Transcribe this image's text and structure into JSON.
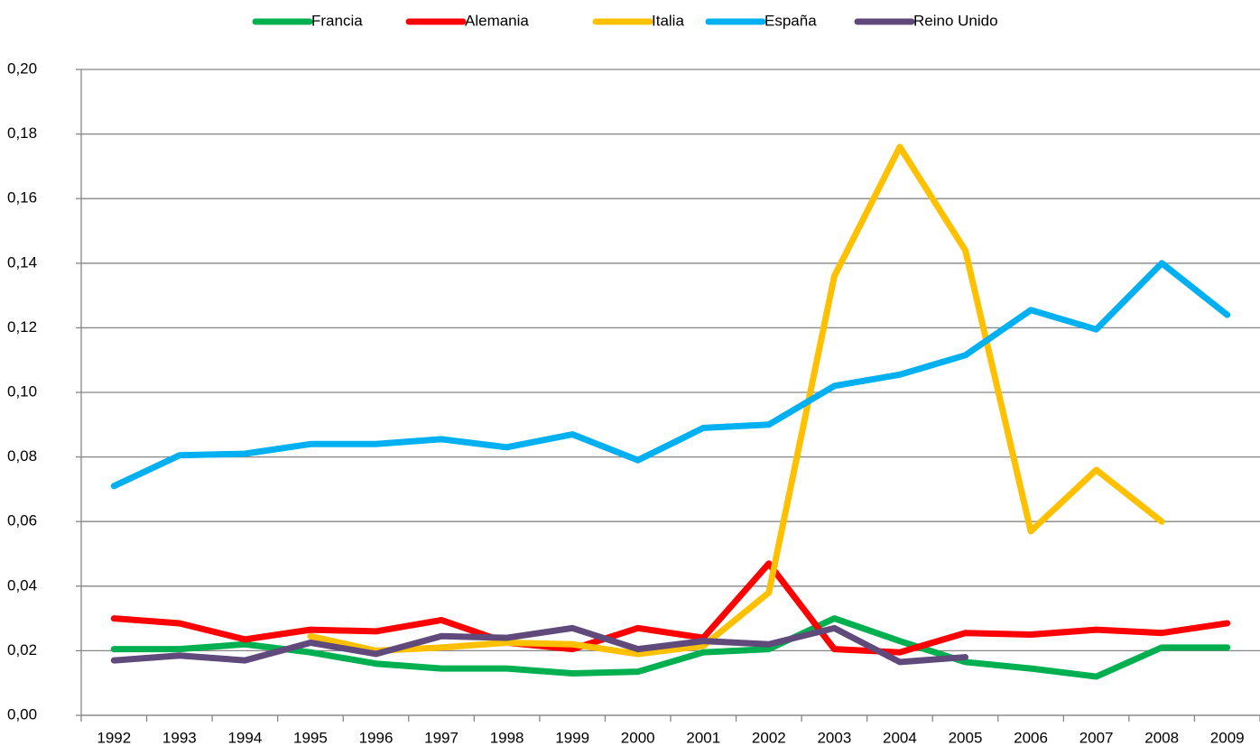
{
  "chart_data": {
    "type": "line",
    "categories": [
      "1992",
      "1993",
      "1994",
      "1995",
      "1996",
      "1997",
      "1998",
      "1999",
      "2000",
      "2001",
      "2002",
      "2003",
      "2004",
      "2005",
      "2006",
      "2007",
      "2008",
      "2009"
    ],
    "series": [
      {
        "name": "Francia",
        "color": "#00b050",
        "values": [
          0.0205,
          0.0205,
          0.022,
          0.0195,
          0.016,
          0.0145,
          0.0145,
          0.013,
          0.0135,
          0.0195,
          0.0205,
          0.03,
          0.023,
          0.0165,
          0.0145,
          0.012,
          0.021,
          0.021
        ]
      },
      {
        "name": "Alemania",
        "color": "#ff0000",
        "values": [
          0.03,
          0.0285,
          0.0235,
          0.0265,
          0.026,
          0.0295,
          0.0225,
          0.0205,
          0.027,
          0.024,
          0.047,
          0.0205,
          0.0195,
          0.0255,
          0.025,
          0.0265,
          0.0255,
          0.0285
        ]
      },
      {
        "name": "Italia",
        "color": "#ffc000",
        "values": [
          null,
          null,
          null,
          0.0245,
          0.02,
          0.021,
          0.0225,
          0.022,
          0.019,
          0.0215,
          0.038,
          0.136,
          0.176,
          0.144,
          0.057,
          0.076,
          0.06,
          null
        ]
      },
      {
        "name": "España",
        "color": "#00b0f0",
        "values": [
          0.071,
          0.0805,
          0.081,
          0.084,
          0.084,
          0.0855,
          0.083,
          0.087,
          0.079,
          0.089,
          0.09,
          0.102,
          0.1055,
          0.1115,
          0.1255,
          0.1195,
          0.14,
          0.124
        ]
      },
      {
        "name": "Reino Unido",
        "color": "#604a7b",
        "values": [
          0.017,
          0.0185,
          0.017,
          0.0225,
          0.019,
          0.0245,
          0.024,
          0.027,
          0.0205,
          0.023,
          0.022,
          0.027,
          0.0165,
          0.018,
          null,
          null,
          null,
          null
        ]
      }
    ],
    "ylim": [
      0,
      0.2
    ],
    "yticks": [
      {
        "value": 0,
        "label": "0,00"
      },
      {
        "value": 0.02,
        "label": "0,02"
      },
      {
        "value": 0.04,
        "label": "0,04"
      },
      {
        "value": 0.06,
        "label": "0,06"
      },
      {
        "value": 0.08,
        "label": "0,08"
      },
      {
        "value": 0.1,
        "label": "0,10"
      },
      {
        "value": 0.12,
        "label": "0,12"
      },
      {
        "value": 0.14,
        "label": "0,14"
      },
      {
        "value": 0.16,
        "label": "0,16"
      },
      {
        "value": 0.18,
        "label": "0,18"
      },
      {
        "value": 0.2,
        "label": "0,20"
      }
    ],
    "grid": true,
    "legend": "top"
  }
}
